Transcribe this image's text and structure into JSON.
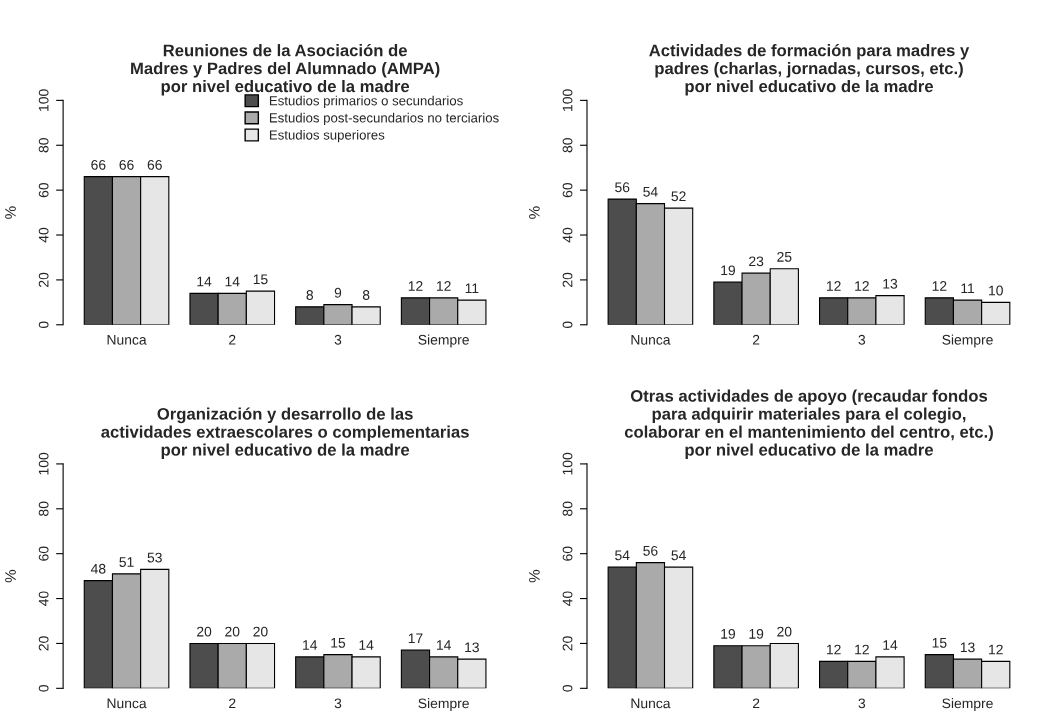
{
  "chart_data": [
    {
      "type": "bar",
      "title": "Reuniones de la Asociación de\nMadres y Padres del Alumnado (AMPA)\npor nivel educativo de la madre",
      "ylabel": "%",
      "categories": [
        "Nunca",
        "2",
        "3",
        "Siempre"
      ],
      "ylim": [
        0,
        100
      ],
      "yticks": [
        0,
        20,
        40,
        60,
        80,
        100
      ],
      "data_labels": true,
      "legend": "top right",
      "series": [
        {
          "name": "Estudios primarios o secundarios",
          "color": "#4d4d4d",
          "values": [
            66,
            14,
            8,
            12
          ]
        },
        {
          "name": "Estudios post-secundarios no terciarios",
          "color": "#aaaaaa",
          "values": [
            66,
            14,
            9,
            12
          ]
        },
        {
          "name": "Estudios superiores",
          "color": "#e6e6e6",
          "values": [
            66,
            15,
            8,
            11
          ]
        }
      ]
    },
    {
      "type": "bar",
      "title": "Actividades de formación para madres y\npadres (charlas, jornadas, cursos, etc.)\npor nivel educativo de la madre",
      "ylabel": "%",
      "categories": [
        "Nunca",
        "2",
        "3",
        "Siempre"
      ],
      "ylim": [
        0,
        100
      ],
      "yticks": [
        0,
        20,
        40,
        60,
        80,
        100
      ],
      "data_labels": true,
      "series": [
        {
          "color": "#4d4d4d",
          "values": [
            56,
            19,
            12,
            12
          ]
        },
        {
          "color": "#aaaaaa",
          "values": [
            54,
            23,
            12,
            11
          ]
        },
        {
          "color": "#e6e6e6",
          "values": [
            52,
            25,
            13,
            10
          ]
        }
      ]
    },
    {
      "type": "bar",
      "title": "Organización y desarrollo de las\nactividades extraescolares o complementarias\npor nivel educativo de la madre",
      "ylabel": "%",
      "categories": [
        "Nunca",
        "2",
        "3",
        "Siempre"
      ],
      "ylim": [
        0,
        100
      ],
      "yticks": [
        0,
        20,
        40,
        60,
        80,
        100
      ],
      "data_labels": true,
      "series": [
        {
          "color": "#4d4d4d",
          "values": [
            48,
            20,
            14,
            17
          ]
        },
        {
          "color": "#aaaaaa",
          "values": [
            51,
            20,
            15,
            14
          ]
        },
        {
          "color": "#e6e6e6",
          "values": [
            53,
            20,
            14,
            13
          ]
        }
      ]
    },
    {
      "type": "bar",
      "title": "Otras actividades de apoyo (recaudar fondos\npara adquirir materiales para el colegio,\ncolaborar en el mantenimiento del centro, etc.)\npor nivel educativo de la madre",
      "ylabel": "%",
      "categories": [
        "Nunca",
        "2",
        "3",
        "Siempre"
      ],
      "ylim": [
        0,
        100
      ],
      "yticks": [
        0,
        20,
        40,
        60,
        80,
        100
      ],
      "data_labels": true,
      "series": [
        {
          "color": "#4d4d4d",
          "values": [
            54,
            19,
            12,
            15
          ]
        },
        {
          "color": "#aaaaaa",
          "values": [
            56,
            19,
            12,
            13
          ]
        },
        {
          "color": "#e6e6e6",
          "values": [
            54,
            20,
            14,
            12
          ]
        }
      ]
    }
  ]
}
